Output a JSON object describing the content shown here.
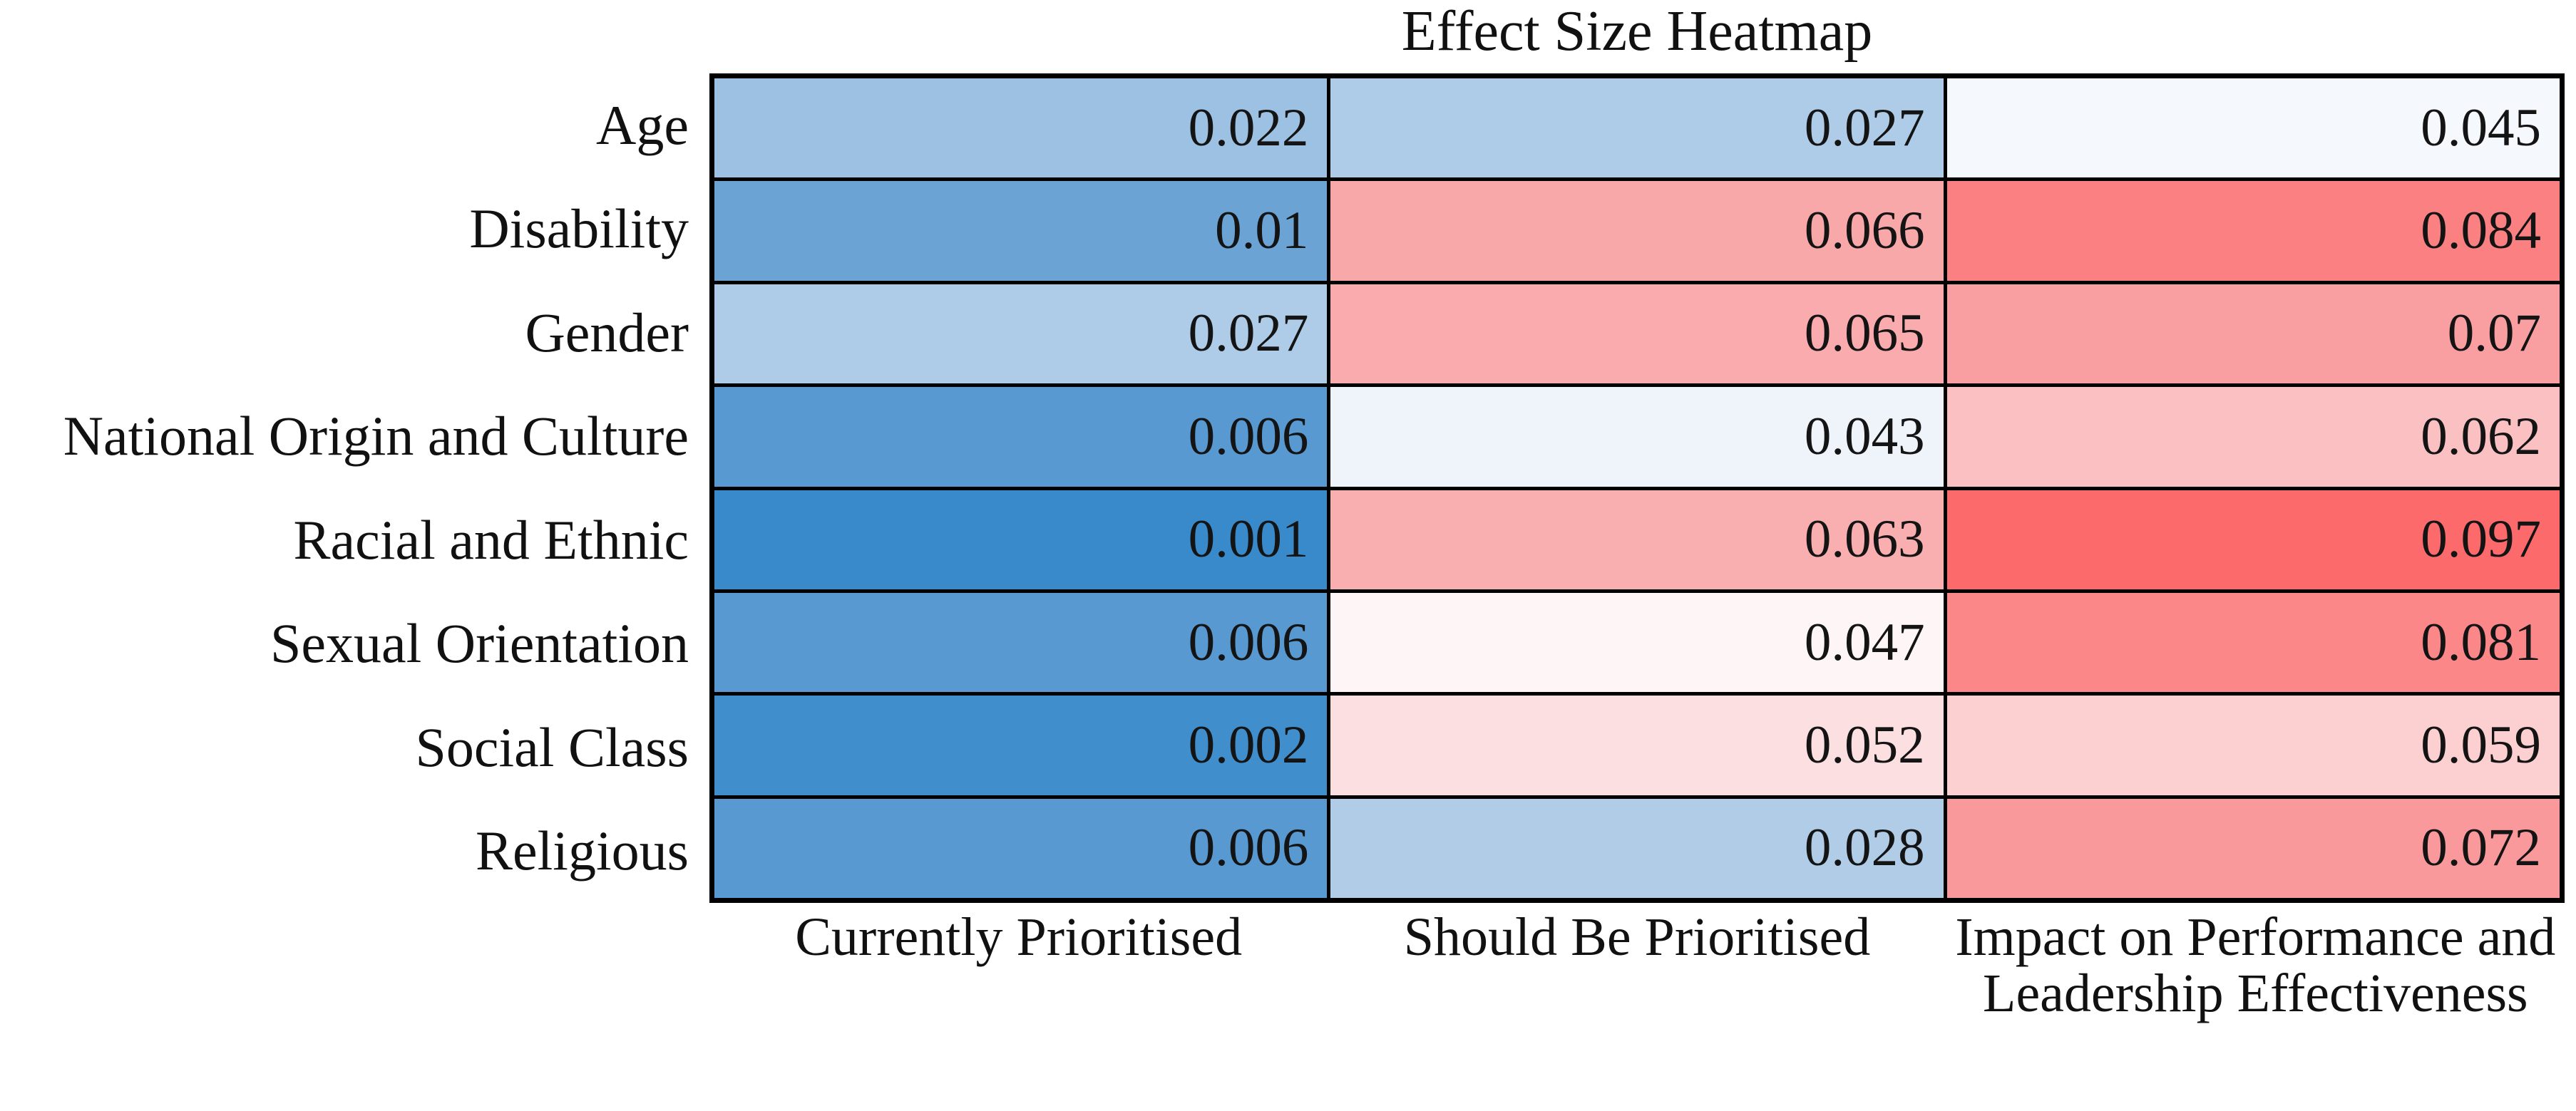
{
  "title": "Effect Size Heatmap",
  "chart_data": {
    "type": "heatmap",
    "title": "Effect Size Heatmap",
    "columns": [
      "Currently Prioritised",
      "Should Be Prioritised",
      "Impact on Performance and Leadership Effectiveness"
    ],
    "rows": [
      {
        "label": "Age",
        "values": [
          0.022,
          0.027,
          0.045
        ],
        "labels": [
          "0.022",
          "0.027",
          "0.045"
        ],
        "colors": [
          "#9CC1E3",
          "#AECBE8",
          "#F5F8FD"
        ]
      },
      {
        "label": "Disability",
        "values": [
          0.01,
          0.066,
          0.084
        ],
        "labels": [
          "0.01",
          "0.066",
          "0.084"
        ],
        "colors": [
          "#6BA3D4",
          "#F9A8AA",
          "#FB8082"
        ]
      },
      {
        "label": "Gender",
        "values": [
          0.027,
          0.065,
          0.07
        ],
        "labels": [
          "0.027",
          "0.065",
          "0.07"
        ],
        "colors": [
          "#AECBE8",
          "#F9ABAD",
          "#F99FA1"
        ]
      },
      {
        "label": "National Origin and Culture",
        "values": [
          0.006,
          0.043,
          0.062
        ],
        "labels": [
          "0.006",
          "0.043",
          "0.062"
        ],
        "colors": [
          "#5899D1",
          "#EFF3FA",
          "#FBC1C2"
        ]
      },
      {
        "label": "Racial and Ethnic",
        "values": [
          0.001,
          0.063,
          0.097
        ],
        "labels": [
          "0.001",
          "0.063",
          "0.097"
        ],
        "colors": [
          "#398ACB",
          "#F9AEB0",
          "#FD6A6C"
        ]
      },
      {
        "label": "Sexual Orientation",
        "values": [
          0.006,
          0.047,
          0.081
        ],
        "labels": [
          "0.006",
          "0.047",
          "0.081"
        ],
        "colors": [
          "#5899D1",
          "#FDF5F6",
          "#FB8789"
        ]
      },
      {
        "label": "Social Class",
        "values": [
          0.002,
          0.052,
          0.059
        ],
        "labels": [
          "0.002",
          "0.052",
          "0.059"
        ],
        "colors": [
          "#418ECC",
          "#FBDFE1",
          "#FCCFD0"
        ]
      },
      {
        "label": "Religious",
        "values": [
          0.006,
          0.028,
          0.072
        ],
        "labels": [
          "0.006",
          "0.028",
          "0.072"
        ],
        "colors": [
          "#5899D1",
          "#B0CCE7",
          "#F9999B"
        ]
      }
    ],
    "colormap": {
      "low": "#398ACB",
      "mid": "#FCFBFE",
      "high": "#FD6A6C",
      "low_value": 0.001,
      "mid_value": 0.046,
      "high_value": 0.097
    },
    "border_color": "#000000",
    "text_color": "#141414",
    "legend_position": "none",
    "grid": "cell-borders"
  }
}
